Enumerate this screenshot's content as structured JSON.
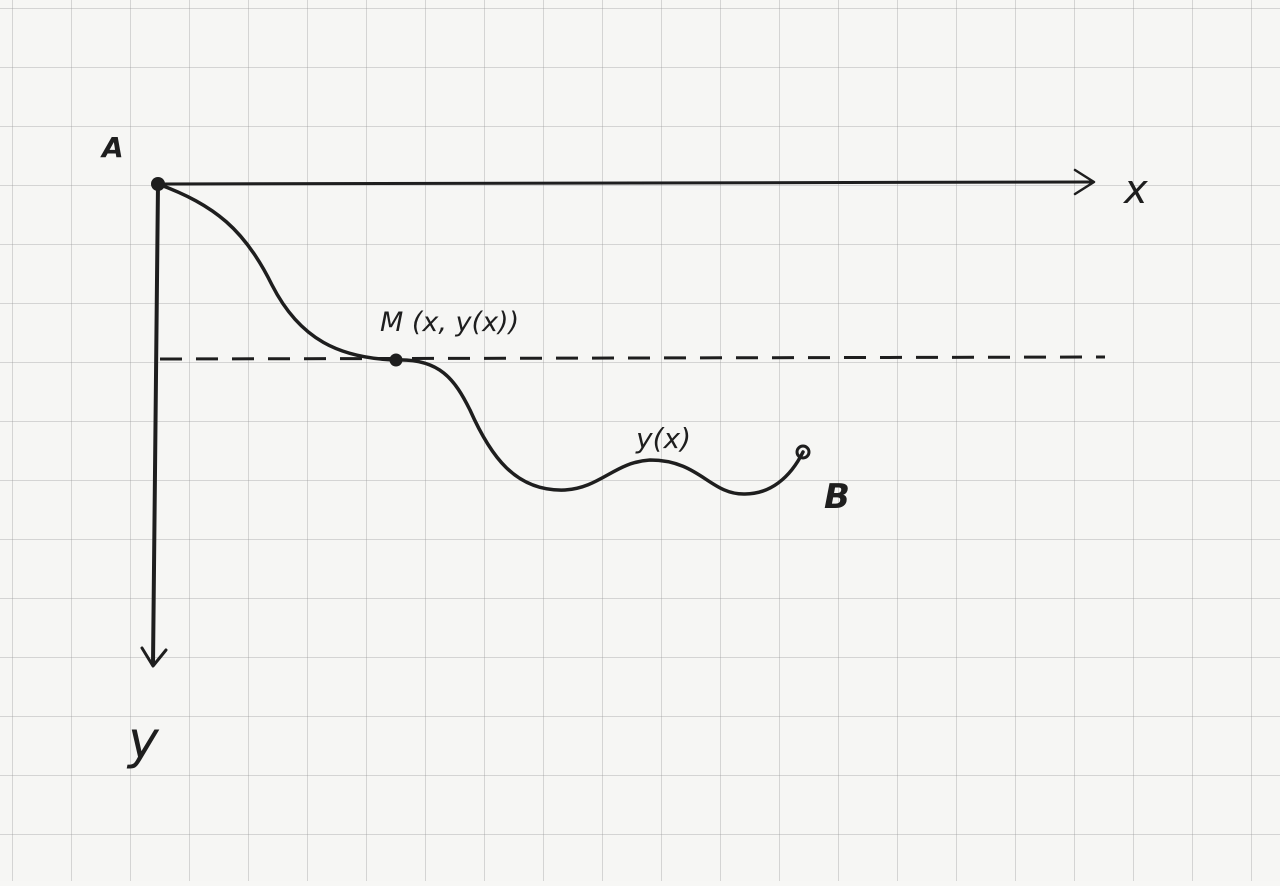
{
  "diagram": {
    "point_a_label": "A",
    "point_b_label": "B",
    "point_m_label": "M (x, y(x))",
    "curve_label": "y(x)",
    "x_axis_label": "x",
    "y_axis_label": "y",
    "ink_color": "#1e1e1e",
    "paper_color": "#f6f6f4",
    "grid_color": "#b4b4b4"
  }
}
